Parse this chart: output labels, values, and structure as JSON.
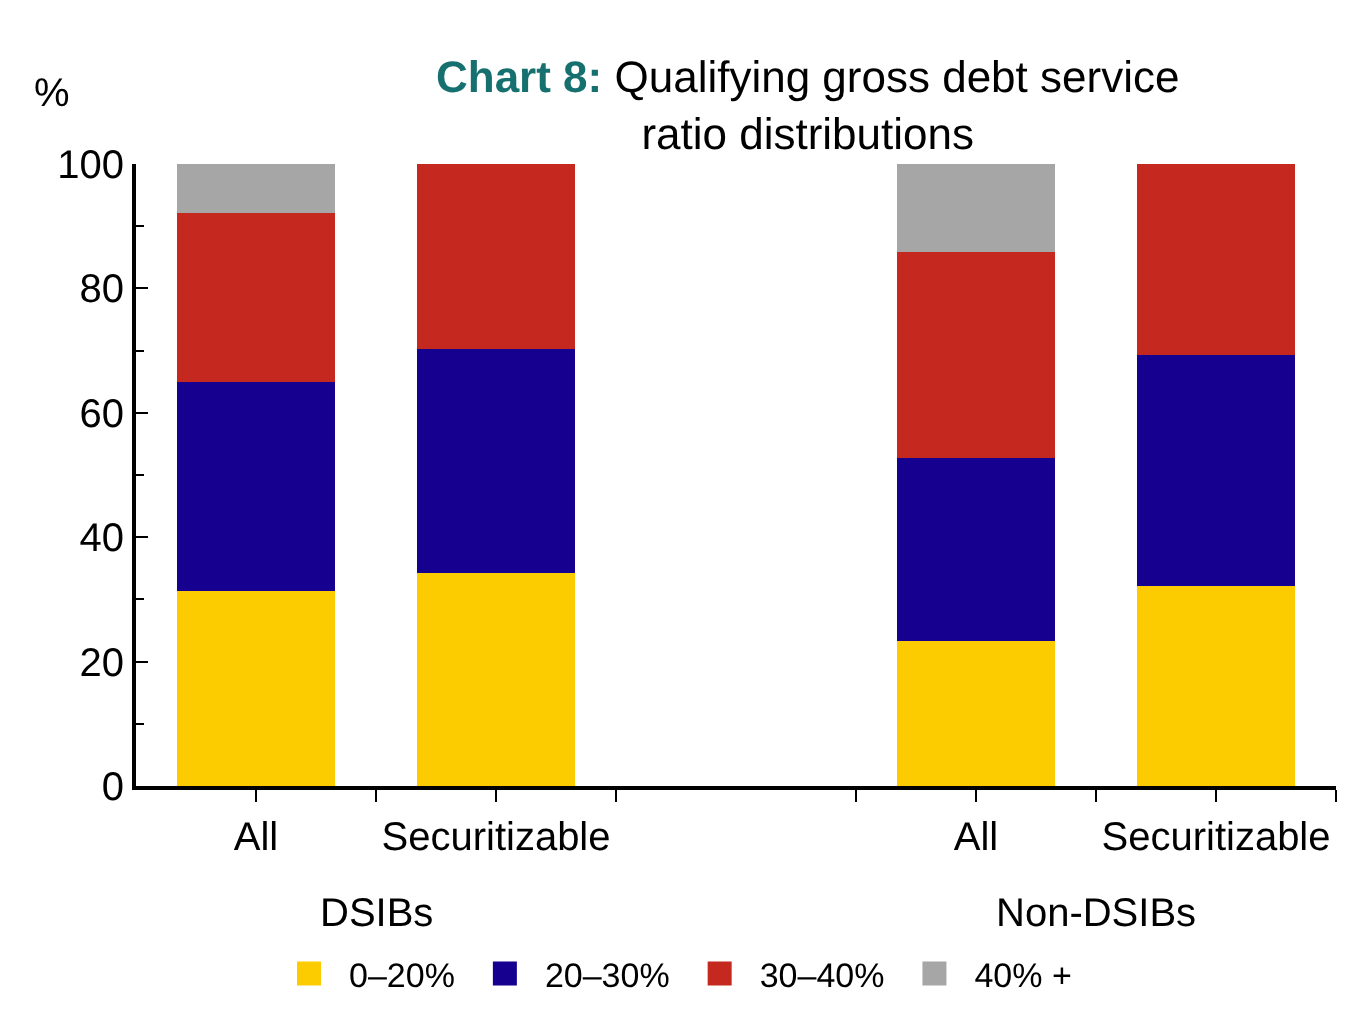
{
  "chart_data": {
    "type": "bar",
    "stacked": true,
    "title": "Chart 8: Qualifying gross debt service ratio distributions",
    "ylabel": "%",
    "categories": [
      "All",
      "Securitizable",
      null,
      "All",
      "Securitizable"
    ],
    "series": [
      {
        "name": "0–20%",
        "color": "#fccc00",
        "values": [
          31.3,
          34.3,
          null,
          23.3,
          32.1
        ]
      },
      {
        "name": "20–30%",
        "color": "#150090",
        "values": [
          33.6,
          35.9,
          null,
          29.4,
          37.2
        ]
      },
      {
        "name": "30–40%",
        "color": "#c4281f",
        "values": [
          27.2,
          29.8,
          null,
          33.1,
          30.7
        ]
      },
      {
        "name": "40% +",
        "color": "#a6a6a6",
        "values": [
          7.9,
          0,
          null,
          14.2,
          0
        ]
      }
    ],
    "annotations": [
      "DSIBs",
      "Non-DSIBs"
    ],
    "ylim": [
      0,
      100
    ],
    "yticks": [
      0,
      20,
      40,
      60,
      80,
      100
    ],
    "legend": "bottom"
  }
}
